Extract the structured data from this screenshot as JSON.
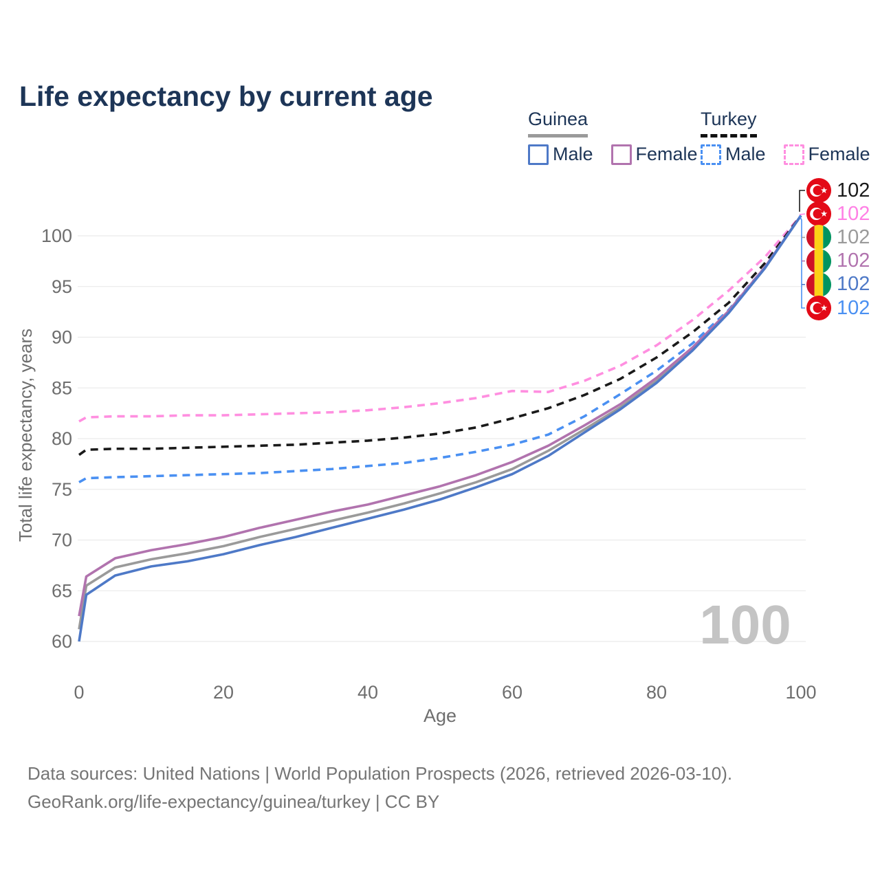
{
  "header": {
    "title": "Life expectancy by current age"
  },
  "legend": {
    "groups": [
      {
        "label": "Guinea",
        "line_style": "solid",
        "line_color": "#9a9a9a",
        "items": [
          {
            "label": "Male",
            "swatch_color": "#4e79c7",
            "dashed": false
          },
          {
            "label": "Female",
            "swatch_color": "#b173ae",
            "dashed": false
          }
        ]
      },
      {
        "label": "Turkey",
        "line_style": "dashed",
        "line_color": "#111111",
        "items": [
          {
            "label": "Male",
            "swatch_color": "#4a90f2",
            "dashed": true
          },
          {
            "label": "Female",
            "swatch_color": "#ff8fe0",
            "dashed": true
          }
        ]
      }
    ]
  },
  "side_labels": [
    {
      "series": "Turkey",
      "flag": "turkey",
      "value": "102",
      "color": "#1a1a1a"
    },
    {
      "series": "Turkey Female",
      "flag": "turkey",
      "value": "102",
      "color": "#ff80e5"
    },
    {
      "series": "Guinea",
      "flag": "guinea",
      "value": "102",
      "color": "#9a9a9a"
    },
    {
      "series": "Guinea Female",
      "flag": "guinea",
      "value": "102",
      "color": "#b173ae"
    },
    {
      "series": "Guinea Male",
      "flag": "guinea",
      "value": "102",
      "color": "#4e79c7"
    },
    {
      "series": "Turkey Male",
      "flag": "turkey",
      "value": "102",
      "color": "#4a90f2"
    }
  ],
  "watermark": "100",
  "footer": {
    "line1": "Data sources: United Nations | World Population Prospects (2026, retrieved 2026-03-10).",
    "line2": "GeoRank.org/life-expectancy/guinea/turkey | CC BY"
  },
  "flag_colors": {
    "turkey_red": "#e30a17",
    "guinea_red": "#ce1126",
    "guinea_yellow": "#fcd116",
    "guinea_green": "#009460"
  },
  "chart_data": {
    "type": "line",
    "title": "Life expectancy by current age",
    "xlabel": "Age",
    "ylabel": "Total life expectancy, years",
    "xlim": [
      0,
      100
    ],
    "ylim": [
      60,
      102
    ],
    "xticks": [
      0,
      20,
      40,
      60,
      80,
      100
    ],
    "yticks": [
      60,
      65,
      70,
      75,
      80,
      85,
      90,
      95,
      100
    ],
    "grid": true,
    "legend_position": "top-right",
    "x": [
      0,
      1,
      5,
      10,
      15,
      20,
      25,
      30,
      35,
      40,
      45,
      50,
      55,
      60,
      65,
      70,
      75,
      80,
      85,
      90,
      95,
      100
    ],
    "series": [
      {
        "name": "Turkey Female",
        "color": "#ff8fe0",
        "dash": true,
        "values": [
          81.7,
          82.1,
          82.2,
          82.2,
          82.3,
          82.3,
          82.4,
          82.5,
          82.6,
          82.8,
          83.1,
          83.5,
          84.0,
          84.7,
          84.6,
          85.7,
          87.2,
          89.2,
          91.7,
          94.6,
          97.9,
          102
        ]
      },
      {
        "name": "Turkey",
        "color": "#1a1a1a",
        "dash": true,
        "values": [
          78.4,
          78.9,
          79.0,
          79.0,
          79.1,
          79.2,
          79.3,
          79.4,
          79.6,
          79.8,
          80.1,
          80.5,
          81.1,
          82.0,
          83.0,
          84.3,
          85.9,
          88.0,
          90.5,
          93.4,
          97.3,
          102
        ]
      },
      {
        "name": "Turkey Male",
        "color": "#4a90f2",
        "dash": true,
        "values": [
          75.7,
          76.1,
          76.2,
          76.3,
          76.4,
          76.5,
          76.6,
          76.8,
          77.0,
          77.3,
          77.6,
          78.1,
          78.7,
          79.4,
          80.4,
          82.2,
          84.4,
          86.7,
          89.4,
          92.7,
          96.9,
          102
        ]
      },
      {
        "name": "Guinea",
        "color": "#9a9a9a",
        "dash": false,
        "values": [
          61.2,
          65.5,
          67.3,
          68.1,
          68.7,
          69.4,
          70.3,
          71.1,
          71.9,
          72.7,
          73.6,
          74.6,
          75.7,
          77.0,
          78.8,
          80.9,
          83.1,
          85.7,
          88.8,
          92.5,
          96.8,
          102
        ]
      },
      {
        "name": "Guinea Female",
        "color": "#b173ae",
        "dash": false,
        "values": [
          62.5,
          66.4,
          68.2,
          69.0,
          69.6,
          70.3,
          71.2,
          72.0,
          72.8,
          73.5,
          74.4,
          75.3,
          76.4,
          77.7,
          79.3,
          81.3,
          83.4,
          86.0,
          89.0,
          92.6,
          96.9,
          102
        ]
      },
      {
        "name": "Guinea Male",
        "color": "#4e79c7",
        "dash": false,
        "values": [
          60.0,
          64.6,
          66.5,
          67.4,
          67.9,
          68.6,
          69.5,
          70.3,
          71.2,
          72.1,
          73.0,
          74.0,
          75.2,
          76.5,
          78.3,
          80.6,
          82.9,
          85.5,
          88.7,
          92.4,
          96.8,
          102
        ]
      }
    ]
  }
}
